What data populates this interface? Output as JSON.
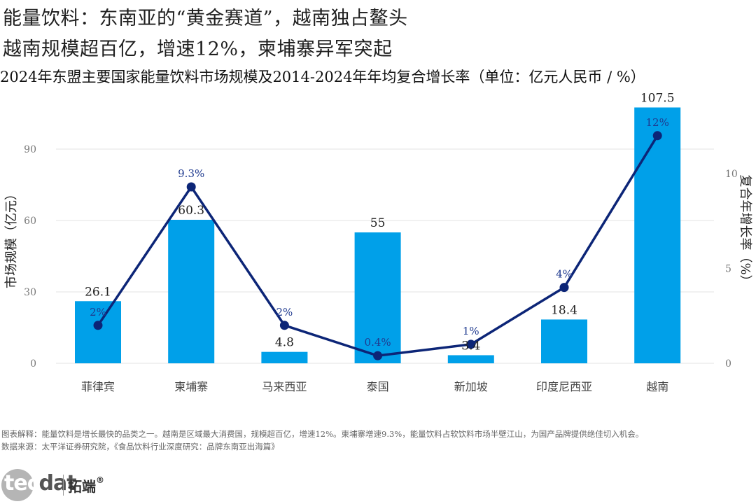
{
  "headline_1": "能量饮料：东南亚的“黄金赛道”，越南独占鳌头",
  "headline_2": "越南规模超百亿，增速12%，柬埔寨异军突起",
  "subtitle": "2024年东盟主要国家能量饮料市场规模及2014-2024年年均复合增长率（单位：亿元人民币 / %）",
  "footer": {
    "note": "图表解释：能量饮料是增长最快的品类之一。越南是区域最大消费国，规模超百亿，增速12%。柬埔寨增速9.3%，能量饮料占软饮料市场半壁江山，为国产品牌提供绝佳切入机会。",
    "source": "数据来源：太平洋证券研究院，《食品饮料行业深度研究：品牌东南亚出海篇》"
  },
  "logo": {
    "word_a": "tec",
    "word_b": "dat",
    "name_cn": "拓端",
    "mark": "®"
  },
  "chart_data": {
    "type": "bar",
    "categories": [
      "菲律宾",
      "柬埔寨",
      "马来西亚",
      "泰国",
      "新加坡",
      "印度尼西亚",
      "越南"
    ],
    "series": [
      {
        "name": "市场规模",
        "type": "bar",
        "axis": "left",
        "values": [
          26.1,
          60.3,
          4.8,
          55,
          3.4,
          18.4,
          107.5
        ],
        "labels": [
          "26.1",
          "60.3",
          "4.8",
          "55",
          "3.4",
          "18.4",
          "107.5"
        ],
        "color": "#00a0e9"
      },
      {
        "name": "复合年增长率",
        "type": "line",
        "axis": "right",
        "values": [
          2,
          9.3,
          2,
          0.4,
          1,
          4,
          12
        ],
        "labels": [
          "2%",
          "9.3%",
          "2%",
          "0.4%",
          "1%",
          "4%",
          "12%"
        ],
        "color": "#0c2577"
      }
    ],
    "ylabel": "市场规模（亿元）",
    "y2label": "复合年增长率（%）",
    "ylim": [
      0,
      107.5
    ],
    "y_ticks": [
      0,
      30,
      60,
      90
    ],
    "y2lim": [
      0,
      10
    ],
    "y2_ticks": [
      0,
      5,
      10
    ],
    "grid": true
  }
}
